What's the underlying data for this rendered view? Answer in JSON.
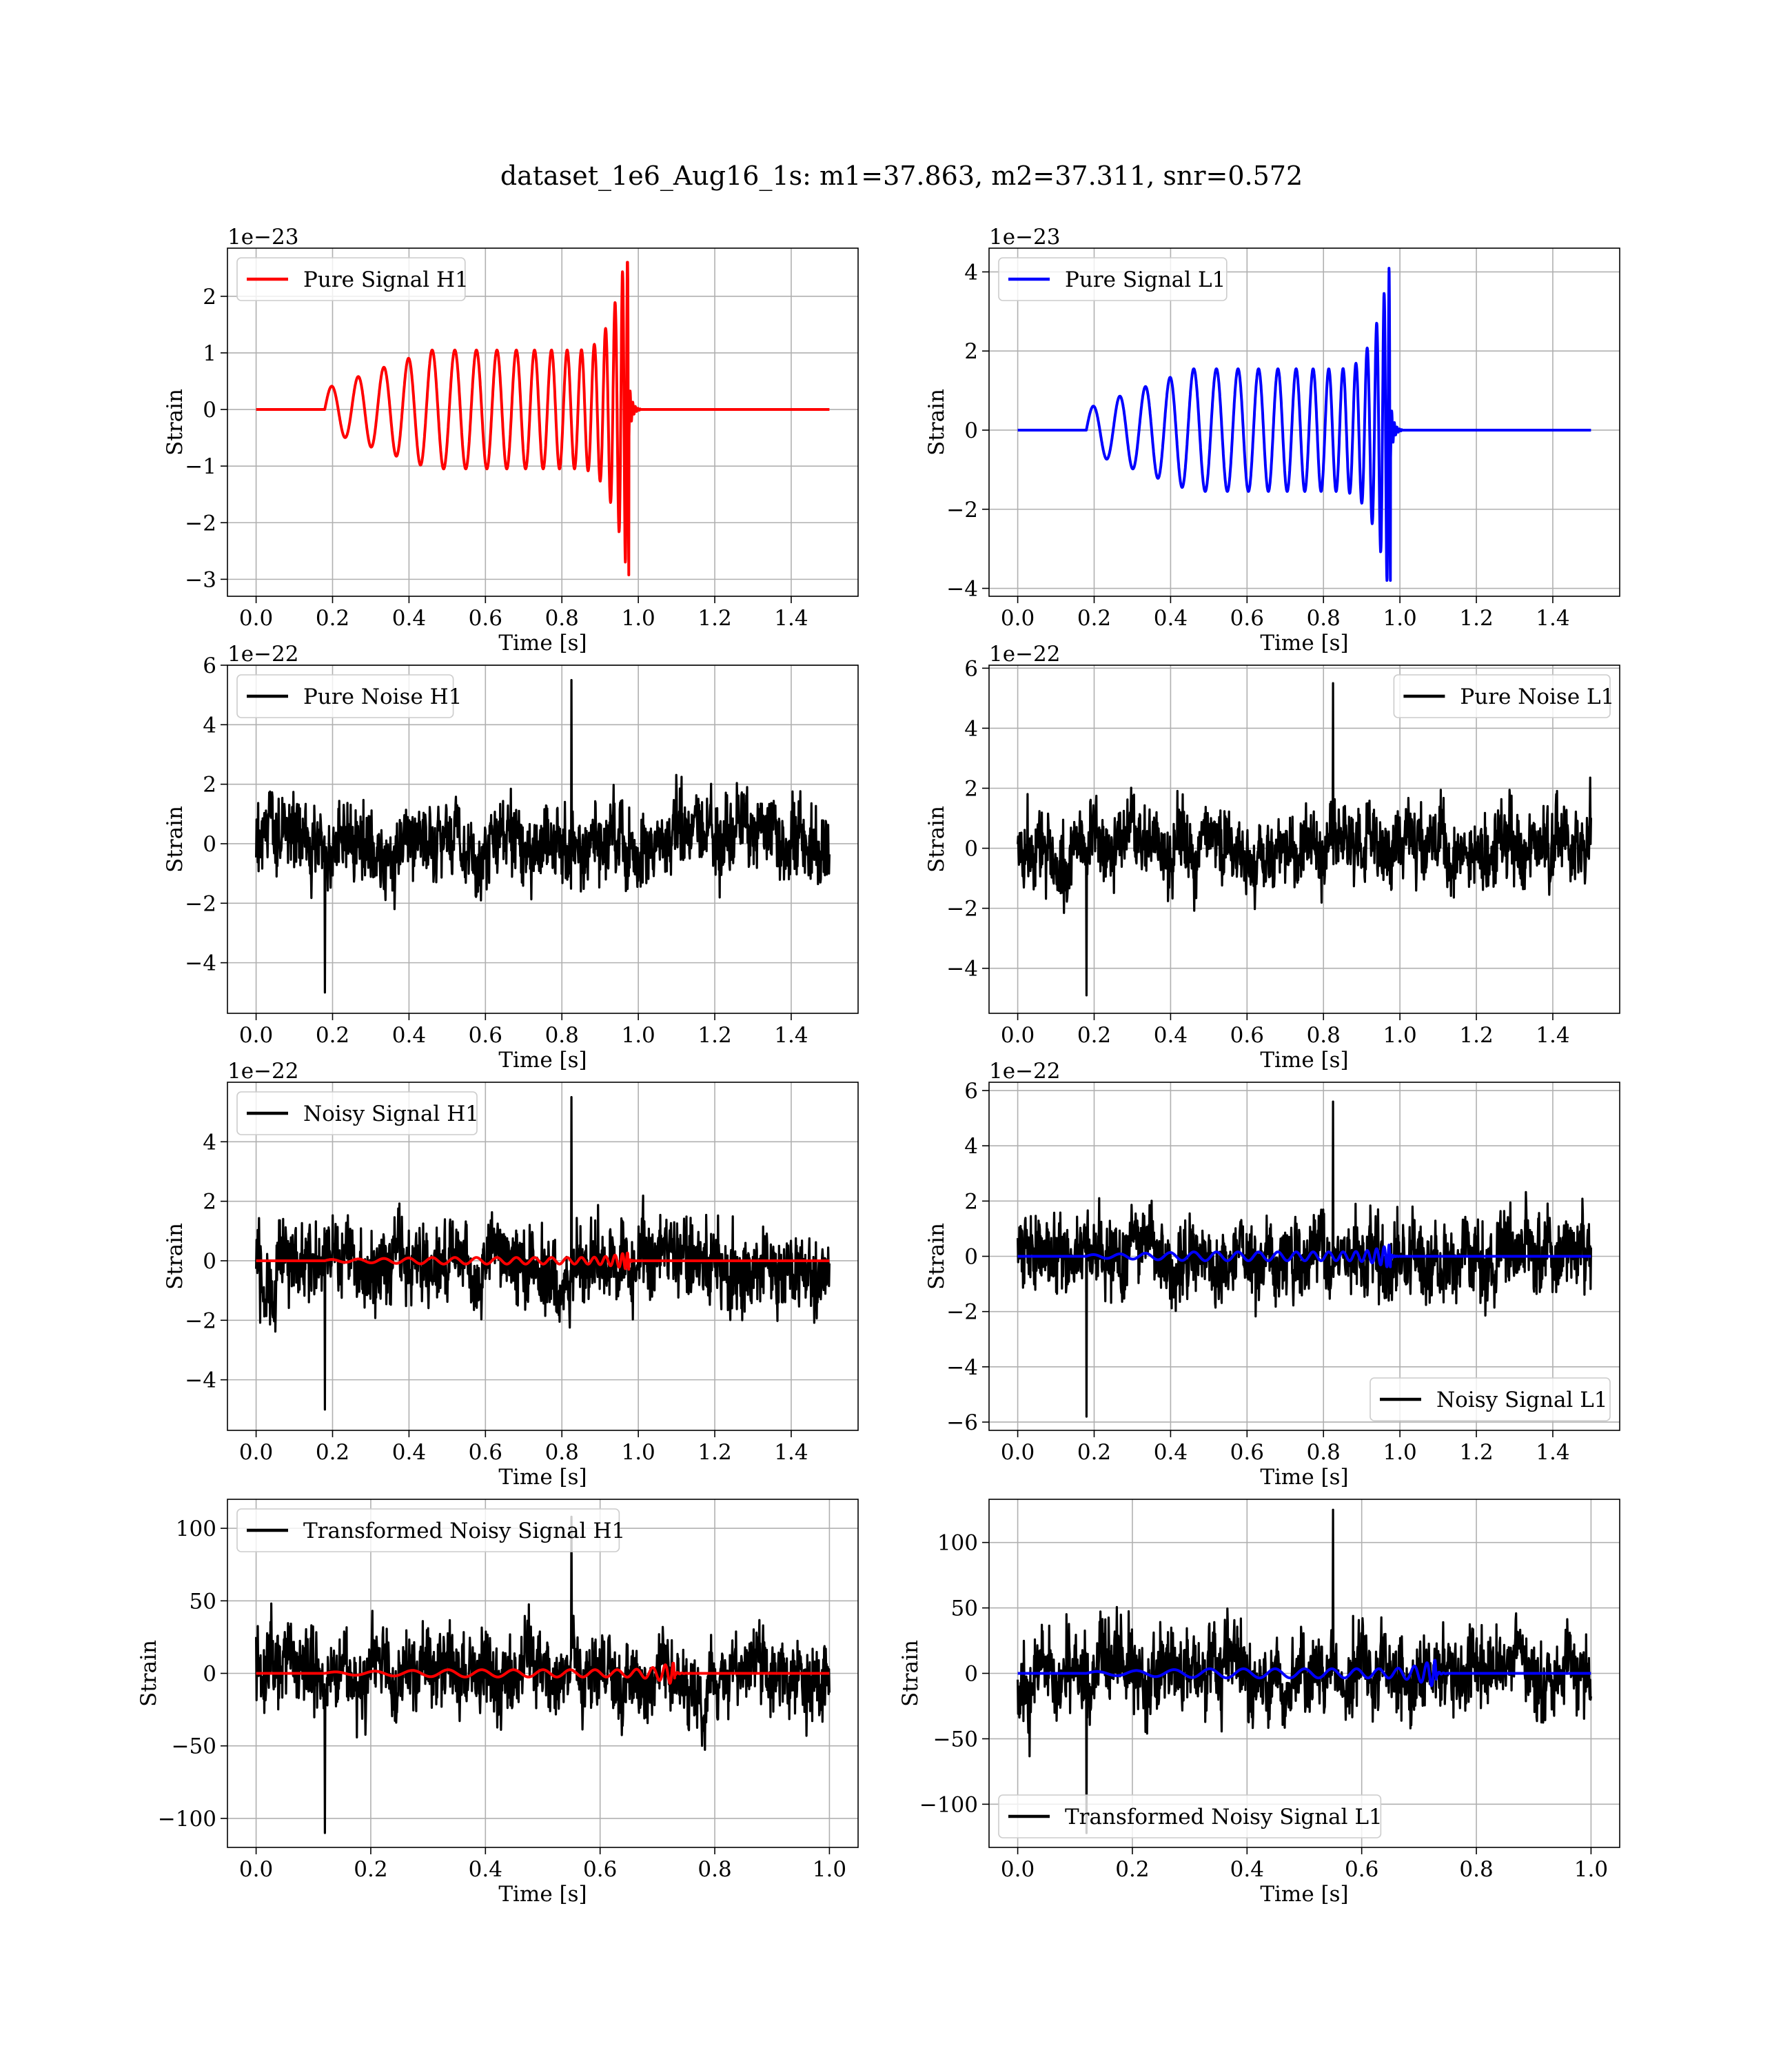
{
  "figure": {
    "title": "dataset_1e6_Aug16_1s: m1=37.863, m2=37.311, snr=0.572"
  },
  "colors": {
    "h1_signal": "#ff0000",
    "l1_signal": "#0000ff",
    "noise": "#000000",
    "grid": "#b0b0b0"
  },
  "chart_data": [
    {
      "type": "line",
      "id": "pure-signal-h1",
      "xlabel": "Time [s]",
      "ylabel": "Strain",
      "offset_text": "1e−23",
      "xlim": [
        -0.075,
        1.575
      ],
      "ylim": [
        -3.3,
        2.85
      ],
      "xticks": [
        0.0,
        0.2,
        0.4,
        0.6,
        0.8,
        1.0,
        1.2,
        1.4
      ],
      "xtick_labels": [
        "0.0",
        "0.2",
        "0.4",
        "0.6",
        "0.8",
        "1.0",
        "1.2",
        "1.4"
      ],
      "yticks": [
        -3,
        -2,
        -1,
        0,
        1,
        2
      ],
      "ytick_labels": [
        "−3",
        "−2",
        "−1",
        "0",
        "1",
        "2"
      ],
      "grid": true,
      "legend_position": "upper-left",
      "series": [
        {
          "name": "Pure Signal H1",
          "kind": "chirp",
          "color": "#ff0000",
          "x_start": 0.0,
          "x_end": 1.5,
          "onset": 0.18,
          "merger": 0.975,
          "peak_pos": 2.6,
          "peak_neg": -3.05,
          "plateau": 1.05
        }
      ]
    },
    {
      "type": "line",
      "id": "pure-signal-l1",
      "xlabel": "Time [s]",
      "ylabel": "Strain",
      "offset_text": "1e−23",
      "xlim": [
        -0.075,
        1.575
      ],
      "ylim": [
        -4.2,
        4.6
      ],
      "xticks": [
        0.0,
        0.2,
        0.4,
        0.6,
        0.8,
        1.0,
        1.2,
        1.4
      ],
      "xtick_labels": [
        "0.0",
        "0.2",
        "0.4",
        "0.6",
        "0.8",
        "1.0",
        "1.2",
        "1.4"
      ],
      "yticks": [
        -4,
        -2,
        0,
        2,
        4
      ],
      "ytick_labels": [
        "−4",
        "−2",
        "0",
        "2",
        "4"
      ],
      "grid": true,
      "legend_position": "upper-left",
      "series": [
        {
          "name": "Pure Signal L1",
          "kind": "chirp",
          "color": "#0000ff",
          "x_start": 0.0,
          "x_end": 1.5,
          "onset": 0.18,
          "merger": 0.975,
          "peak_pos": 4.3,
          "peak_neg": -3.8,
          "plateau": 1.55
        }
      ]
    },
    {
      "type": "line",
      "id": "pure-noise-h1",
      "xlabel": "Time [s]",
      "ylabel": "Strain",
      "offset_text": "1e−22",
      "xlim": [
        -0.075,
        1.575
      ],
      "ylim": [
        -5.7,
        6.0
      ],
      "xticks": [
        0.0,
        0.2,
        0.4,
        0.6,
        0.8,
        1.0,
        1.2,
        1.4
      ],
      "xtick_labels": [
        "0.0",
        "0.2",
        "0.4",
        "0.6",
        "0.8",
        "1.0",
        "1.2",
        "1.4"
      ],
      "yticks": [
        -4,
        -2,
        0,
        2,
        4,
        6
      ],
      "ytick_labels": [
        "−4",
        "−2",
        "0",
        "2",
        "4",
        "6"
      ],
      "grid": true,
      "legend_position": "upper-left",
      "series": [
        {
          "name": "Pure Noise H1",
          "kind": "noise",
          "color": "#000000",
          "x_start": 0.0,
          "x_end": 1.5,
          "max": 5.5,
          "min": -5.0
        }
      ]
    },
    {
      "type": "line",
      "id": "pure-noise-l1",
      "xlabel": "Time [s]",
      "ylabel": "Strain",
      "offset_text": "1e−22",
      "xlim": [
        -0.075,
        1.575
      ],
      "ylim": [
        -5.5,
        6.1
      ],
      "xticks": [
        0.0,
        0.2,
        0.4,
        0.6,
        0.8,
        1.0,
        1.2,
        1.4
      ],
      "xtick_labels": [
        "0.0",
        "0.2",
        "0.4",
        "0.6",
        "0.8",
        "1.0",
        "1.2",
        "1.4"
      ],
      "yticks": [
        -4,
        -2,
        0,
        2,
        4,
        6
      ],
      "ytick_labels": [
        "−4",
        "−2",
        "0",
        "2",
        "4",
        "6"
      ],
      "grid": true,
      "legend_position": "upper-right",
      "series": [
        {
          "name": "Pure Noise L1",
          "kind": "noise",
          "color": "#000000",
          "x_start": 0.0,
          "x_end": 1.5,
          "max": 5.5,
          "min": -4.9
        }
      ]
    },
    {
      "type": "line",
      "id": "noisy-signal-h1",
      "xlabel": "Time [s]",
      "ylabel": "Strain",
      "offset_text": "1e−22",
      "xlim": [
        -0.075,
        1.575
      ],
      "ylim": [
        -5.7,
        6.0
      ],
      "xticks": [
        0.0,
        0.2,
        0.4,
        0.6,
        0.8,
        1.0,
        1.2,
        1.4
      ],
      "xtick_labels": [
        "0.0",
        "0.2",
        "0.4",
        "0.6",
        "0.8",
        "1.0",
        "1.2",
        "1.4"
      ],
      "yticks": [
        -4,
        -2,
        0,
        2,
        4
      ],
      "ytick_labels": [
        "−4",
        "−2",
        "0",
        "2",
        "4"
      ],
      "grid": true,
      "legend_position": "upper-left",
      "series": [
        {
          "name": "Noisy Signal H1",
          "kind": "noise",
          "color": "#000000",
          "x_start": 0.0,
          "x_end": 1.5,
          "max": 5.5,
          "min": -5.0
        },
        {
          "name": "",
          "kind": "chirp",
          "color": "#ff0000",
          "x_start": 0.0,
          "x_end": 1.5,
          "onset": 0.18,
          "merger": 0.975,
          "peak_pos": 0.26,
          "peak_neg": -0.3,
          "plateau": 0.11
        }
      ]
    },
    {
      "type": "line",
      "id": "noisy-signal-l1",
      "xlabel": "Time [s]",
      "ylabel": "Strain",
      "offset_text": "1e−22",
      "xlim": [
        -0.075,
        1.575
      ],
      "ylim": [
        -6.3,
        6.3
      ],
      "xticks": [
        0.0,
        0.2,
        0.4,
        0.6,
        0.8,
        1.0,
        1.2,
        1.4
      ],
      "xtick_labels": [
        "0.0",
        "0.2",
        "0.4",
        "0.6",
        "0.8",
        "1.0",
        "1.2",
        "1.4"
      ],
      "yticks": [
        -6,
        -4,
        -2,
        0,
        2,
        4,
        6
      ],
      "ytick_labels": [
        "−6",
        "−4",
        "−2",
        "0",
        "2",
        "4",
        "6"
      ],
      "grid": true,
      "legend_position": "lower-right",
      "series": [
        {
          "name": "Noisy Signal L1",
          "kind": "noise",
          "color": "#000000",
          "x_start": 0.0,
          "x_end": 1.5,
          "max": 5.6,
          "min": -5.8
        },
        {
          "name": "",
          "kind": "chirp",
          "color": "#0000ff",
          "x_start": 0.0,
          "x_end": 1.5,
          "onset": 0.18,
          "merger": 0.975,
          "peak_pos": 0.43,
          "peak_neg": -0.38,
          "plateau": 0.16
        }
      ]
    },
    {
      "type": "line",
      "id": "transformed-noisy-signal-h1",
      "xlabel": "Time [s]",
      "ylabel": "Strain",
      "offset_text": "",
      "xlim": [
        -0.05,
        1.05
      ],
      "ylim": [
        -120,
        120
      ],
      "xticks": [
        0.0,
        0.2,
        0.4,
        0.6,
        0.8,
        1.0
      ],
      "xtick_labels": [
        "0.0",
        "0.2",
        "0.4",
        "0.6",
        "0.8",
        "1.0"
      ],
      "yticks": [
        -100,
        -50,
        0,
        50,
        100
      ],
      "ytick_labels": [
        "−100",
        "−50",
        "0",
        "50",
        "100"
      ],
      "grid": true,
      "legend_position": "upper-left",
      "series": [
        {
          "name": "Transformed Noisy Signal H1",
          "kind": "noise",
          "color": "#000000",
          "x_start": 0.0,
          "x_end": 1.0,
          "max": 108,
          "min": -110
        },
        {
          "name": "",
          "kind": "chirp",
          "color": "#ff0000",
          "x_start": 0.0,
          "x_end": 1.0,
          "onset": 0.12,
          "merger": 0.73,
          "peak_pos": 7,
          "peak_neg": -8,
          "plateau": 2.5
        }
      ]
    },
    {
      "type": "line",
      "id": "transformed-noisy-signal-l1",
      "xlabel": "Time [s]",
      "ylabel": "Strain",
      "offset_text": "",
      "xlim": [
        -0.05,
        1.05
      ],
      "ylim": [
        -133,
        133
      ],
      "xticks": [
        0.0,
        0.2,
        0.4,
        0.6,
        0.8,
        1.0
      ],
      "xtick_labels": [
        "0.0",
        "0.2",
        "0.4",
        "0.6",
        "0.8",
        "1.0"
      ],
      "yticks": [
        -100,
        -50,
        0,
        50,
        100
      ],
      "ytick_labels": [
        "−100",
        "−50",
        "0",
        "50",
        "100"
      ],
      "grid": true,
      "legend_position": "lower-left",
      "series": [
        {
          "name": "Transformed Noisy Signal L1",
          "kind": "noise",
          "color": "#000000",
          "x_start": 0.0,
          "x_end": 1.0,
          "max": 125,
          "min": -122
        },
        {
          "name": "",
          "kind": "chirp",
          "color": "#0000ff",
          "x_start": 0.0,
          "x_end": 1.0,
          "onset": 0.12,
          "merger": 0.73,
          "peak_pos": 10,
          "peak_neg": -11,
          "plateau": 3.5
        }
      ]
    }
  ]
}
